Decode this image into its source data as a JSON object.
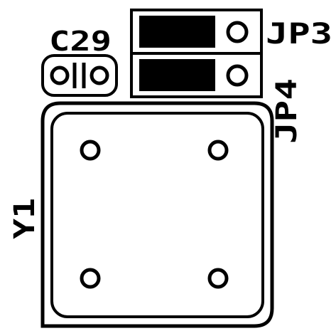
{
  "labels": {
    "capacitor": "C29",
    "jumper_top": "JP3",
    "jumper_bottom": "JP4",
    "crystal": "Y1"
  },
  "colors": {
    "background": "#ffffff",
    "silkscreen": "#000000"
  }
}
